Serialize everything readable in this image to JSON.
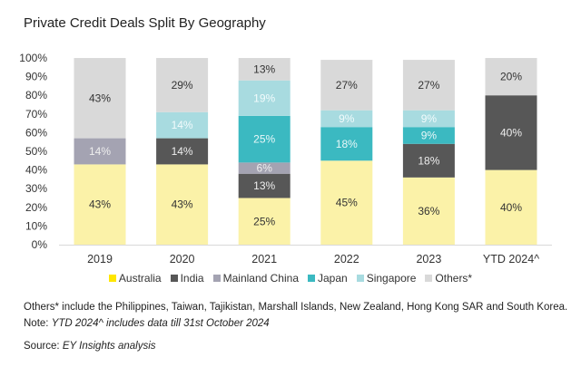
{
  "chart_data": {
    "type": "bar",
    "stacked": true,
    "title": "Private Credit Deals Split By Geography",
    "categories": [
      "2019",
      "2020",
      "2021",
      "2022",
      "2023",
      "YTD 2024^"
    ],
    "ylim": [
      0,
      100
    ],
    "yticks": [
      "0%",
      "10%",
      "20%",
      "30%",
      "40%",
      "50%",
      "60%",
      "70%",
      "80%",
      "90%",
      "100%"
    ],
    "legend_position": "bottom",
    "series": [
      {
        "name": "Australia",
        "color": "#fbf2a8",
        "legend_color": "#ffe600",
        "label_color": "#333333",
        "values": [
          43,
          43,
          25,
          45,
          36,
          40
        ]
      },
      {
        "name": "India",
        "color": "#575757",
        "legend_color": "#575757",
        "label_color": "#eeeeee",
        "values": [
          0,
          14,
          13,
          0,
          18,
          40
        ]
      },
      {
        "name": "Mainland China",
        "color": "#a4a3b2",
        "legend_color": "#a4a3b2",
        "label_color": "#eeeeee",
        "values": [
          14,
          0,
          6,
          0,
          0,
          0
        ]
      },
      {
        "name": "Japan",
        "color": "#3bb9c1",
        "legend_color": "#3bb9c1",
        "label_color": "#e8f7f8",
        "values": [
          0,
          0,
          25,
          18,
          9,
          0
        ]
      },
      {
        "name": "Singapore",
        "color": "#a8dbe0",
        "legend_color": "#a8dbe0",
        "label_color": "#f2fbfc",
        "values": [
          0,
          14,
          19,
          9,
          9,
          0
        ]
      },
      {
        "name": "Others*",
        "color": "#d9d9d9",
        "legend_color": "#d9d9d9",
        "label_color": "#333333",
        "values": [
          43,
          29,
          13,
          27,
          27,
          20
        ]
      }
    ]
  },
  "notes": {
    "others": "Others* include the Philippines, Taiwan, Tajikistan, Marshall Islands, New Zealand, Hong Kong SAR and South Korea.",
    "note_prefix": "Note: ",
    "note_body": "YTD 2024^ includes data till 31st October 2024",
    "source_prefix": "Source: ",
    "source_body": "EY Insights analysis"
  }
}
